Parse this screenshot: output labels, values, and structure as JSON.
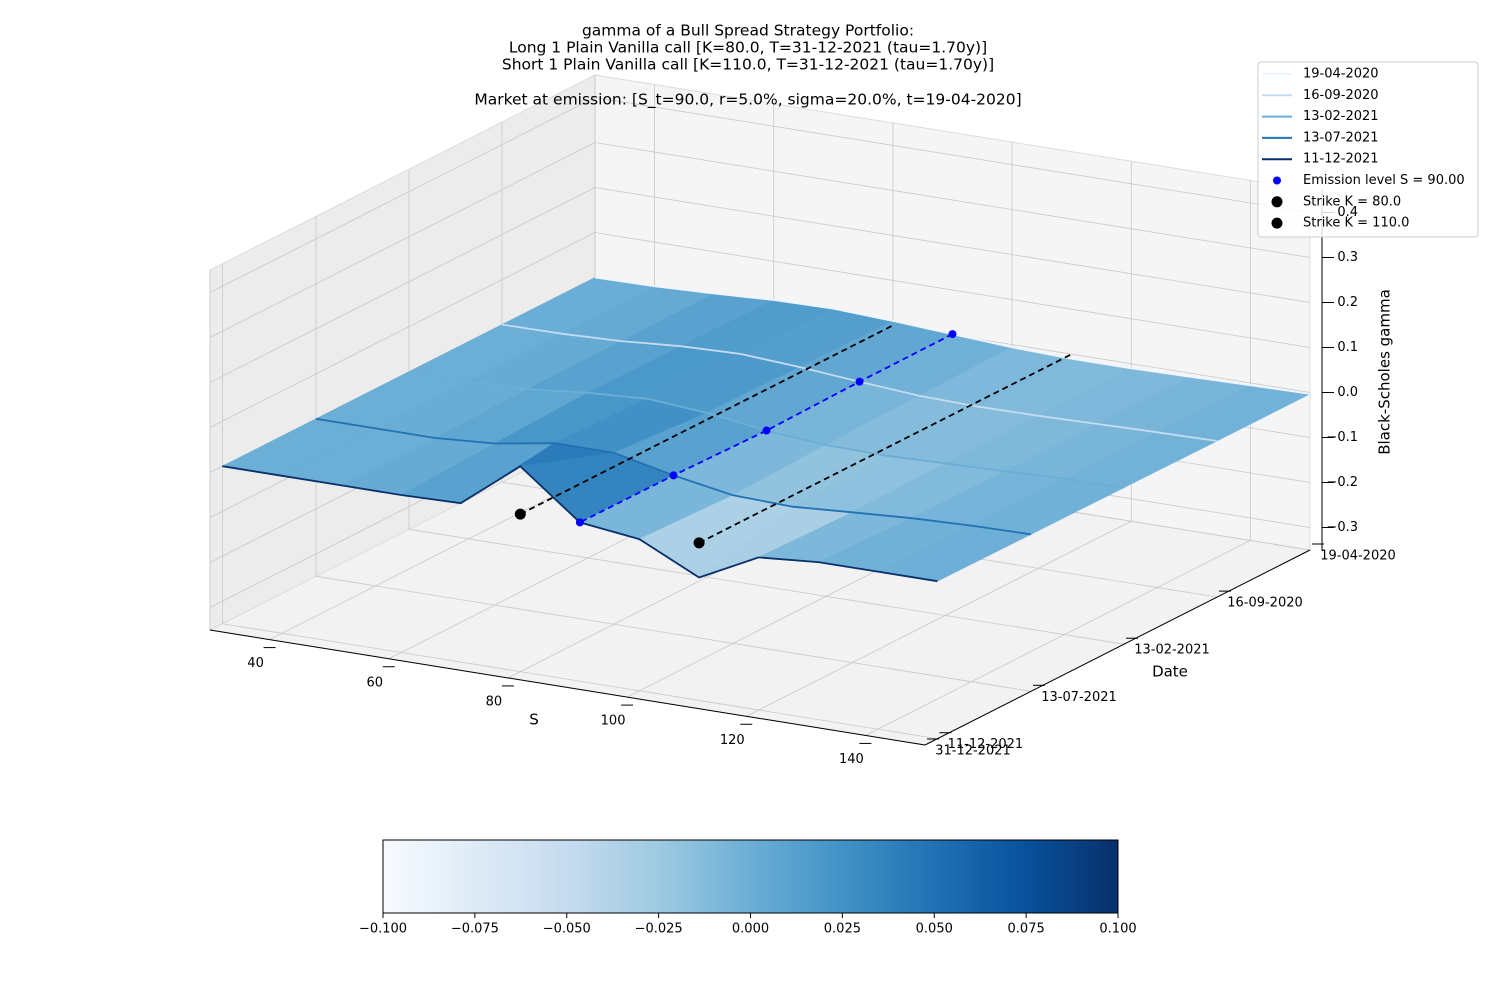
{
  "chart_data": {
    "type": "surface3d",
    "title": [
      "gamma of a Bull Spread Strategy Portfolio:",
      "Long 1 Plain Vanilla call [K=80.0, T=31-12-2021 (tau=1.70y)]",
      "Short 1 Plain Vanilla call [K=110.0, T=31-12-2021 (tau=1.70y)]",
      "Market at emission: [S_t=90.0, r=5.0%, sigma=20.0%, t=19-04-2020]"
    ],
    "x_label": "S",
    "y_label": "Date",
    "z_label": "Black-Scholes gamma",
    "x": [
      30,
      40,
      50,
      60,
      70,
      80,
      90,
      100,
      110,
      120,
      130,
      140,
      150
    ],
    "xlim": [
      30,
      150
    ],
    "xticks": [
      40,
      60,
      80,
      100,
      120,
      140
    ],
    "date_ticks": [
      "19-04-2020",
      "16-09-2020",
      "13-02-2021",
      "13-07-2021",
      "11-12-2021",
      "31-12-2021"
    ],
    "zlim": [
      -0.35,
      0.45
    ],
    "zticks": [
      {
        "value": -0.3,
        "label": "−0.3"
      },
      {
        "value": -0.2,
        "label": "−0.2"
      },
      {
        "value": -0.1,
        "label": "−0.1"
      },
      {
        "value": 0,
        "label": "0.0"
      },
      0.1,
      0.2,
      0.3,
      0.4
    ],
    "series": [
      {
        "name": "19-04-2020",
        "color": "#eef5fc",
        "values": [
          0,
          0.002,
          0.007,
          0.014,
          0.016,
          0.01,
          0.002,
          -0.006,
          -0.01,
          -0.01,
          -0.008,
          -0.005,
          -0.003
        ]
      },
      {
        "name": "16-09-2020",
        "color": "#c6dbef",
        "values": [
          0,
          0.001,
          0.006,
          0.016,
          0.02,
          0.012,
          0.001,
          -0.009,
          -0.012,
          -0.011,
          -0.008,
          -0.005,
          -0.003
        ]
      },
      {
        "name": "13-02-2021",
        "color": "#6baed6",
        "values": [
          0,
          0,
          0.004,
          0.017,
          0.025,
          0.015,
          -0.003,
          -0.014,
          -0.016,
          -0.012,
          -0.008,
          -0.004,
          -0.002
        ]
      },
      {
        "name": "13-07-2021",
        "color": "#2171b5",
        "values": [
          0,
          0,
          0,
          0.009,
          0.031,
          0.031,
          0.002,
          -0.021,
          -0.025,
          -0.016,
          -0.008,
          -0.003,
          -0.001
        ]
      },
      {
        "name": "11-12-2021",
        "color": "#08306b",
        "values": [
          0,
          0,
          0,
          0,
          0.003,
          0.106,
          0.003,
          -0.013,
          -0.077,
          -0.011,
          0,
          0,
          0
        ]
      }
    ],
    "emission": {
      "name": "Emission level S = 90.00",
      "color": "#0000ff",
      "x": 90,
      "values": [
        0.002,
        0.001,
        -0.003,
        0.002,
        0.003
      ]
    },
    "strikes": [
      {
        "name": "Strike K = 80.0",
        "color": "#000000",
        "x": 80,
        "value": 0
      },
      {
        "name": "Strike K = 110.0",
        "color": "#000000",
        "x": 110,
        "value": 0
      }
    ],
    "colormap": [
      "#f7fbff",
      "#deebf7",
      "#c6dbef",
      "#9ecae1",
      "#6baed6",
      "#4292c6",
      "#2171b5",
      "#08519c",
      "#08306b"
    ],
    "clim": [
      -0.1,
      0.1
    ],
    "cticks": [
      {
        "value": -0.1,
        "label": "−0.100"
      },
      {
        "value": -0.075,
        "label": "−0.075"
      },
      {
        "value": -0.05,
        "label": "−0.050"
      },
      {
        "value": -0.025,
        "label": "−0.025"
      },
      {
        "value": 0,
        "label": "0.000"
      },
      {
        "value": 0.025,
        "label": "0.025"
      },
      {
        "value": 0.05,
        "label": "0.050"
      },
      {
        "value": 0.075,
        "label": "0.075"
      },
      {
        "value": 0.1,
        "label": "0.100"
      }
    ],
    "legend": "upper right",
    "grid": true
  }
}
